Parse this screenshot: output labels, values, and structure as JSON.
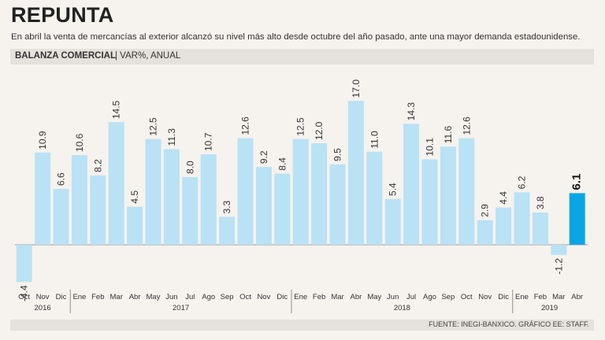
{
  "header": {
    "title": "REPUNTA",
    "subtitle": "En abril la venta de mercancías al exterior alcanzó su nivel más alto desde octubre del año pasado, ante una mayor demanda estadounidense.",
    "band_bold": "BALANZA COMERCIAL",
    "band_rest": "| VAR%, ANUAL"
  },
  "footer": {
    "source": "FUENTE: INEGI-BANXICO. GRÁFICO EE: STAFF."
  },
  "colors": {
    "bar": "#b9e2f4",
    "highlight": "#0aa6e4",
    "axis": "#777777",
    "text": "#333333"
  },
  "chart_data": {
    "type": "bar",
    "title": "BALANZA COMERCIAL | VAR%, ANUAL",
    "xlabel": "",
    "ylabel": "Var% anual",
    "ylim": [
      -5,
      19
    ],
    "categories": [
      "Oct",
      "Nov",
      "Dic",
      "Ene",
      "Feb",
      "Mar",
      "Abr",
      "May",
      "Jun",
      "Jul",
      "Ago",
      "Sep",
      "Oct",
      "Nov",
      "Dic",
      "Ene",
      "Feb",
      "Mar",
      "Abr",
      "May",
      "Jun",
      "Jul",
      "Ago",
      "Sep",
      "Oct",
      "Nov",
      "Dic",
      "Ene",
      "Feb",
      "Mar",
      "Abr"
    ],
    "values": [
      -4.4,
      10.9,
      6.6,
      10.6,
      8.2,
      14.5,
      4.5,
      12.5,
      11.3,
      8.0,
      10.7,
      3.3,
      12.6,
      9.2,
      8.4,
      12.5,
      12.0,
      9.5,
      17.0,
      11.0,
      5.4,
      14.3,
      10.1,
      11.6,
      12.6,
      2.9,
      4.4,
      6.2,
      3.8,
      -1.2,
      6.1
    ],
    "value_labels": [
      "-4.4",
      "10.9",
      "6.6",
      "10.6",
      "8.2",
      "14.5",
      "4.5",
      "12.5",
      "11.3",
      "8.0",
      "10.7",
      "3.3",
      "12.6",
      "9.2",
      "8.4",
      "12.5",
      "12.0",
      "9.5",
      "17.0",
      "11.0",
      "5.4",
      "14.3",
      "10.1",
      "11.6",
      "12.6",
      "2.9",
      "4.4",
      "6.2",
      "3.8",
      "-1.2",
      "6.1"
    ],
    "highlight_index": 30,
    "years": [
      {
        "label": "2016",
        "start": 0,
        "end": 2
      },
      {
        "label": "2017",
        "start": 3,
        "end": 14
      },
      {
        "label": "2018",
        "start": 15,
        "end": 26
      },
      {
        "label": "2019",
        "start": 27,
        "end": 30
      }
    ]
  }
}
